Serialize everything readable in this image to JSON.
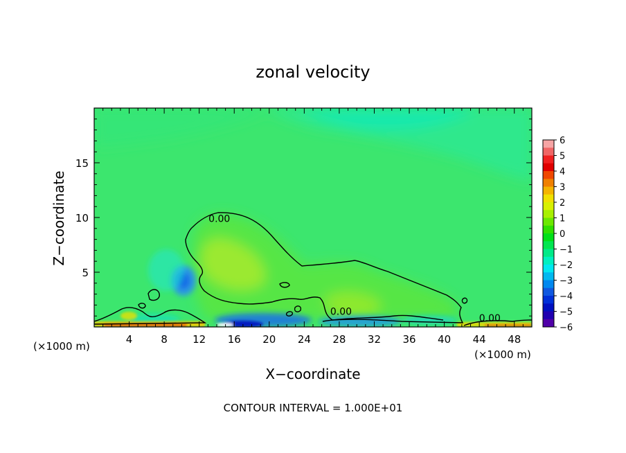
{
  "chart_data": {
    "type": "heatmap",
    "title": "zonal velocity",
    "xlabel": "X−coordinate",
    "ylabel": "Z−coordinate",
    "x_unit_left": "(×1000 m)",
    "x_unit_right": "(×1000 m)",
    "footer": "CONTOUR INTERVAL = 1.000E+01",
    "xlim": [
      0,
      50
    ],
    "ylim": [
      0,
      20
    ],
    "x_ticks": [
      4,
      8,
      12,
      16,
      20,
      24,
      28,
      32,
      36,
      40,
      44,
      48
    ],
    "x_tick_labels": [
      "4",
      "8",
      "12",
      "16",
      "20",
      "24",
      "28",
      "32",
      "36",
      "40",
      "44",
      "48"
    ],
    "y_ticks": [
      5,
      10,
      15
    ],
    "y_tick_labels": [
      "5",
      "10",
      "15"
    ],
    "contour_labels": [
      {
        "text": "0.00",
        "x": 14.3,
        "y": 9.6
      },
      {
        "text": "0.00",
        "x": 28.2,
        "y": 1.1
      },
      {
        "text": "0.00",
        "x": 45.2,
        "y": 0.5
      }
    ],
    "colorbar": {
      "labels": [
        "6",
        "5",
        "4",
        "3",
        "2",
        "1",
        "0",
        "−1",
        "−2",
        "−3",
        "−4",
        "−5",
        "−6"
      ],
      "colors": [
        "#f6a4a4",
        "#f06666",
        "#f02020",
        "#e00000",
        "#f04800",
        "#f08000",
        "#f4b400",
        "#f0e000",
        "#d8f000",
        "#a8f000",
        "#6ce800",
        "#30e000",
        "#00e018",
        "#00e650",
        "#00ea88",
        "#00f0c0",
        "#00e8f0",
        "#00b8f0",
        "#0088f0",
        "#1058e0",
        "#0030d8",
        "#0010c0",
        "#2000b0",
        "#5000a8"
      ]
    },
    "background_color": "#3ce66e"
  }
}
